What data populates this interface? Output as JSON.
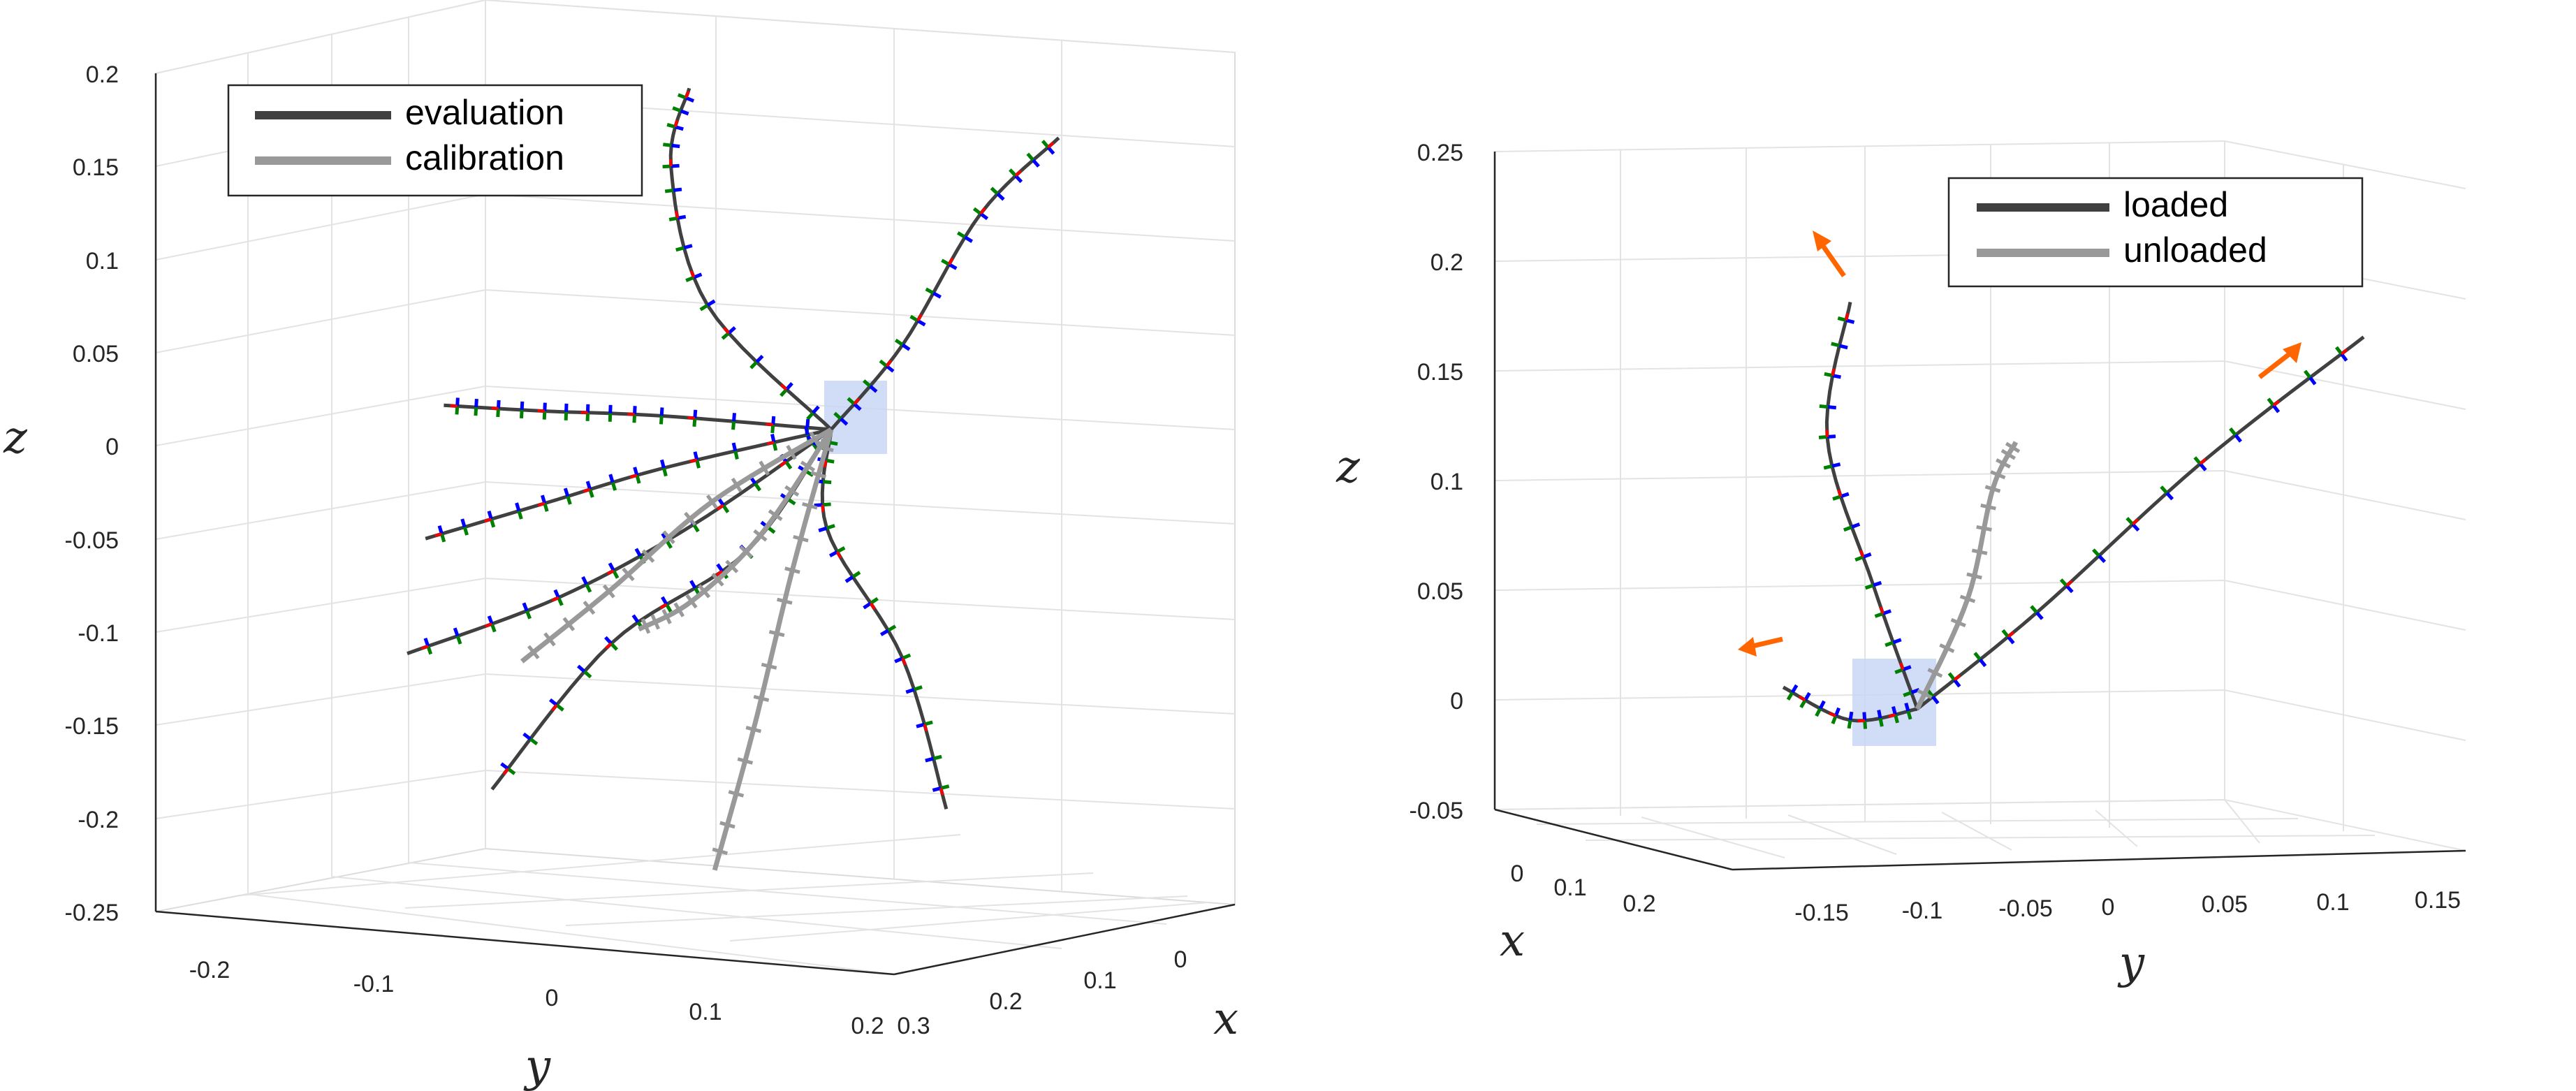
{
  "colors": {
    "evaluation": "#404040",
    "calibration": "#999999",
    "frame_x": "#ff0000",
    "frame_y": "#008000",
    "frame_z": "#0000ff",
    "force_arrow": "#ff6600",
    "base_region": "#c6d4f5"
  },
  "chart_data": [
    {
      "type": "line",
      "subtype": "3d-line",
      "title": "",
      "xlabel": "x",
      "ylabel": "y",
      "zlabel": "z",
      "xlim": [
        0,
        0.3
      ],
      "ylim": [
        -0.25,
        0.2
      ],
      "zlim": [
        -0.25,
        0.2
      ],
      "xticks": [
        "0",
        "0.1",
        "0.2",
        "0.3"
      ],
      "yticks": [
        "-0.2",
        "-0.1",
        "0",
        "0.1",
        "0.2"
      ],
      "zticks": [
        "0.2",
        "0.15",
        "0.1",
        "0.05",
        "0",
        "-0.05",
        "-0.1",
        "-0.15",
        "-0.2",
        "-0.25"
      ],
      "grid": true,
      "legend_position": "top-left",
      "legend": [
        "evaluation",
        "calibration"
      ],
      "series": [
        {
          "name": "evaluation",
          "points": [
            [
              0,
              0.05,
              0
            ],
            [
              0.05,
              -0.02,
              0.08
            ],
            [
              0.07,
              -0.04,
              0.16
            ],
            [
              0.06,
              -0.03,
              0.2
            ]
          ]
        },
        {
          "name": "evaluation",
          "points": [
            [
              0,
              0.05,
              0
            ],
            [
              0.04,
              0.1,
              0.05
            ],
            [
              0.05,
              0.15,
              0.12
            ],
            [
              0.06,
              0.2,
              0.16
            ]
          ]
        },
        {
          "name": "evaluation",
          "points": [
            [
              0,
              0.05,
              0
            ],
            [
              0.04,
              -0.05,
              0.02
            ],
            [
              0.06,
              -0.12,
              0.03
            ],
            [
              0.08,
              -0.18,
              0.04
            ]
          ]
        },
        {
          "name": "evaluation",
          "points": [
            [
              0,
              0.05,
              0
            ],
            [
              0.03,
              -0.05,
              -0.01
            ],
            [
              0.06,
              -0.12,
              -0.02
            ],
            [
              0.09,
              -0.19,
              -0.03
            ]
          ]
        },
        {
          "name": "evaluation",
          "points": [
            [
              0,
              0.05,
              0
            ],
            [
              0.04,
              -0.03,
              -0.04
            ],
            [
              0.07,
              -0.11,
              -0.07
            ],
            [
              0.1,
              -0.2,
              -0.09
            ]
          ]
        },
        {
          "name": "evaluation",
          "points": [
            [
              0,
              0.05,
              0
            ],
            [
              0.02,
              0.0,
              -0.06
            ],
            [
              0.05,
              -0.08,
              -0.1
            ],
            [
              0.08,
              -0.15,
              -0.17
            ]
          ]
        },
        {
          "name": "evaluation",
          "points": [
            [
              0,
              0.05,
              0
            ],
            [
              0.02,
              0.05,
              -0.05
            ],
            [
              0.04,
              0.1,
              -0.12
            ],
            [
              0.06,
              0.13,
              -0.2
            ]
          ]
        },
        {
          "name": "calibration",
          "points": [
            [
              0,
              0.05,
              0
            ],
            [
              0.03,
              -0.02,
              -0.03
            ],
            [
              0.06,
              -0.08,
              -0.07
            ],
            [
              0.09,
              -0.13,
              -0.1
            ]
          ]
        },
        {
          "name": "calibration",
          "points": [
            [
              0,
              0.05,
              0
            ],
            [
              0.03,
              0.01,
              -0.05
            ],
            [
              0.05,
              -0.03,
              -0.08
            ],
            [
              0.07,
              -0.06,
              -0.09
            ]
          ]
        },
        {
          "name": "calibration",
          "points": [
            [
              0,
              0.05,
              0
            ],
            [
              0.03,
              0.03,
              -0.07
            ],
            [
              0.06,
              0.01,
              -0.15
            ],
            [
              0.09,
              -0.01,
              -0.22
            ]
          ]
        }
      ]
    },
    {
      "type": "line",
      "subtype": "3d-line",
      "title": "",
      "xlabel": "x",
      "ylabel": "y",
      "zlabel": "z",
      "xlim": [
        0,
        0.2
      ],
      "ylim": [
        -0.15,
        0.15
      ],
      "zlim": [
        -0.05,
        0.25
      ],
      "xticks": [
        "0",
        "0.1",
        "0.2"
      ],
      "yticks": [
        "-0.15",
        "-0.1",
        "-0.05",
        "0",
        "0.05",
        "0.1",
        "0.15"
      ],
      "zticks": [
        "0.25",
        "0.2",
        "0.15",
        "0.1",
        "0.05",
        "0",
        "-0.05"
      ],
      "grid": true,
      "legend_position": "top-right",
      "legend": [
        "loaded",
        "unloaded"
      ],
      "series": [
        {
          "name": "loaded",
          "points": [
            [
              0,
              -0.09,
              0
            ],
            [
              0.01,
              -0.11,
              0.06
            ],
            [
              0.01,
              -0.13,
              0.13
            ],
            [
              0.01,
              -0.12,
              0.19
            ]
          ]
        },
        {
          "name": "loaded",
          "points": [
            [
              0,
              -0.09,
              0
            ],
            [
              0.02,
              -0.04,
              0.04
            ],
            [
              0.03,
              0.03,
              0.1
            ],
            [
              0.04,
              0.1,
              0.15
            ]
          ]
        },
        {
          "name": "loaded",
          "points": [
            [
              0,
              -0.09,
              0
            ],
            [
              0.01,
              -0.12,
              0
            ],
            [
              0.02,
              -0.15,
              0.02
            ]
          ]
        },
        {
          "name": "unloaded",
          "points": [
            [
              0,
              -0.09,
              0
            ],
            [
              0.02,
              -0.07,
              0.05
            ],
            [
              0.03,
              -0.06,
              0.1
            ],
            [
              0.03,
              -0.05,
              0.12
            ]
          ]
        }
      ]
    }
  ]
}
